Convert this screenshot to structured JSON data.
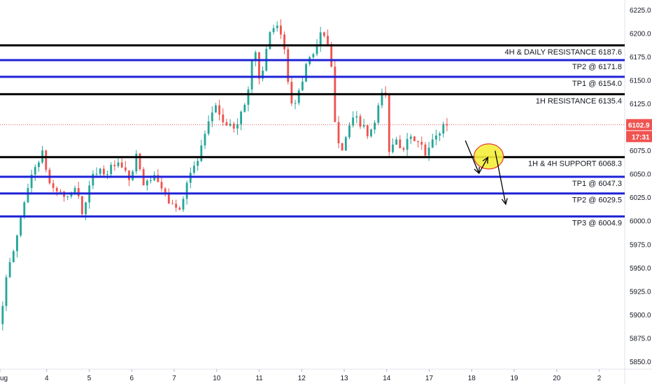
{
  "chart_data": {
    "type": "candlestick",
    "x_tick_labels": [
      {
        "label": "ug",
        "day": 2.9
      },
      {
        "label": "4",
        "day": 4
      },
      {
        "label": "5",
        "day": 5
      },
      {
        "label": "6",
        "day": 6
      },
      {
        "label": "7",
        "day": 7
      },
      {
        "label": "10",
        "day": 8
      },
      {
        "label": "11",
        "day": 9
      },
      {
        "label": "12",
        "day": 10
      },
      {
        "label": "13",
        "day": 11
      },
      {
        "label": "14",
        "day": 12
      },
      {
        "label": "17",
        "day": 13
      },
      {
        "label": "18",
        "day": 14
      },
      {
        "label": "19",
        "day": 15
      },
      {
        "label": "20",
        "day": 16
      },
      {
        "label": "2",
        "day": 17
      }
    ],
    "y_tick_labels": [
      "6225.0",
      "6200.0",
      "6175.0",
      "6150.0",
      "6125.0",
      "6100.0",
      "6075.0",
      "6050.0",
      "6025.0",
      "6000.0",
      "5975.0",
      "5950.0",
      "5925.0",
      "5900.0",
      "5875.0",
      "5850.0"
    ],
    "ylim": [
      5845,
      6238
    ],
    "xlim": [
      2.9,
      17.6
    ],
    "grid": false,
    "current_price": {
      "value": 6102.9,
      "label": "6102.9",
      "countdown": "17:31",
      "color": "#ef5350"
    },
    "levels": [
      {
        "label": "4H & DAILY RESISTANCE 6187.6",
        "value": 6187.6,
        "color": "#000000"
      },
      {
        "label": "TP2 @ 6171.8",
        "value": 6171.8,
        "color": "#1e22d6"
      },
      {
        "label": "TP1 @ 6154.0",
        "value": 6154.0,
        "color": "#1e22d6"
      },
      {
        "label": "1H RESISTANCE 6135.4",
        "value": 6135.4,
        "color": "#000000"
      },
      {
        "label": "1H & 4H SUPPORT 6068.3",
        "value": 6068.3,
        "color": "#000000"
      },
      {
        "label": "TP1 @ 6047.3",
        "value": 6047.3,
        "color": "#1e22d6"
      },
      {
        "label": "TP2 @ 6029.5",
        "value": 6029.5,
        "color": "#1e22d6"
      },
      {
        "label": "TP3 @ 6004.9",
        "value": 6004.9,
        "color": "#1e22d6"
      }
    ],
    "price_path": [
      [
        2.92,
        5890
      ],
      [
        3.1,
        5940
      ],
      [
        3.3,
        5975
      ],
      [
        3.55,
        6030
      ],
      [
        3.8,
        6062
      ],
      [
        3.95,
        6072
      ],
      [
        4.1,
        6040
      ],
      [
        4.35,
        6030
      ],
      [
        4.6,
        6022
      ],
      [
        4.75,
        6045
      ],
      [
        4.85,
        6000
      ],
      [
        5.0,
        6030
      ],
      [
        5.2,
        6055
      ],
      [
        5.45,
        6052
      ],
      [
        5.65,
        6060
      ],
      [
        5.85,
        6055
      ],
      [
        6.0,
        6042
      ],
      [
        6.15,
        6068
      ],
      [
        6.35,
        6035
      ],
      [
        6.5,
        6048
      ],
      [
        6.65,
        6042
      ],
      [
        6.85,
        6025
      ],
      [
        7.0,
        6018
      ],
      [
        7.15,
        6008
      ],
      [
        7.35,
        6045
      ],
      [
        7.6,
        6065
      ],
      [
        7.9,
        6110
      ],
      [
        8.0,
        6128
      ],
      [
        8.15,
        6108
      ],
      [
        8.4,
        6098
      ],
      [
        8.6,
        6112
      ],
      [
        8.75,
        6130
      ],
      [
        8.85,
        6165
      ],
      [
        8.92,
        6190
      ],
      [
        9.05,
        6150
      ],
      [
        9.2,
        6178
      ],
      [
        9.3,
        6200
      ],
      [
        9.45,
        6205
      ],
      [
        9.6,
        6198
      ],
      [
        9.68,
        6160
      ],
      [
        9.82,
        6125
      ],
      [
        10.0,
        6138
      ],
      [
        10.15,
        6170
      ],
      [
        10.35,
        6182
      ],
      [
        10.48,
        6202
      ],
      [
        10.6,
        6192
      ],
      [
        10.72,
        6180
      ],
      [
        10.78,
        6125
      ],
      [
        10.88,
        6090
      ],
      [
        11.0,
        6078
      ],
      [
        11.15,
        6100
      ],
      [
        11.3,
        6110
      ],
      [
        11.45,
        6103
      ],
      [
        11.6,
        6090
      ],
      [
        11.75,
        6102
      ],
      [
        11.85,
        6120
      ],
      [
        11.95,
        6142
      ],
      [
        12.05,
        6132
      ],
      [
        12.1,
        6072
      ],
      [
        12.25,
        6092
      ],
      [
        12.4,
        6078
      ],
      [
        12.55,
        6085
      ],
      [
        12.7,
        6088
      ],
      [
        12.85,
        6080
      ],
      [
        12.95,
        6070
      ],
      [
        13.05,
        6078
      ],
      [
        13.15,
        6088
      ],
      [
        13.3,
        6096
      ],
      [
        13.4,
        6104
      ]
    ],
    "projection_arrows": [
      {
        "from": [
          13.85,
          6086
        ],
        "to": [
          14.17,
          6051
        ]
      },
      {
        "from": [
          14.17,
          6051
        ],
        "to": [
          14.38,
          6068
        ]
      },
      {
        "from": [
          14.55,
          6075
        ],
        "to": [
          14.8,
          6018
        ]
      }
    ],
    "highlight_ellipse": {
      "center": [
        14.4,
        6069
      ],
      "fill": "#f5ee3c",
      "stroke": "#e53935"
    }
  }
}
